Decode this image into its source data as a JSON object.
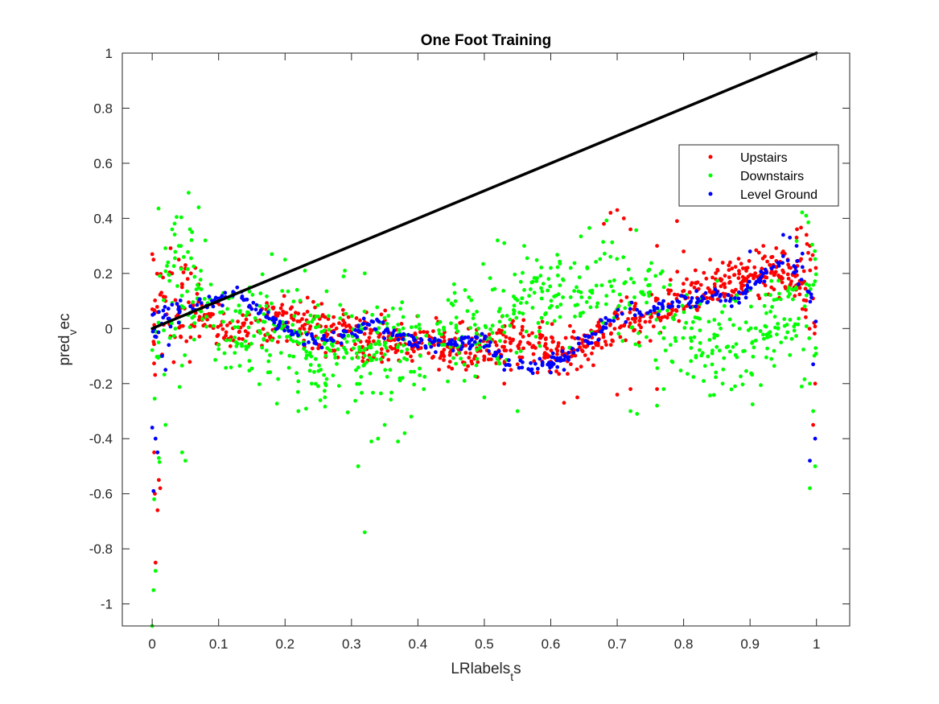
{
  "chart_data": {
    "type": "scatter",
    "title": "One Foot Training",
    "xlabel": {
      "base": "LRlabels",
      "sub": "t",
      "rest": "s"
    },
    "ylabel": {
      "base": "pred",
      "sub": "v",
      "rest": "ec"
    },
    "xlim": [
      -0.045,
      1.05
    ],
    "ylim": [
      -1.08,
      1.0
    ],
    "xticks": [
      0,
      0.1,
      0.2,
      0.3,
      0.4,
      0.5,
      0.6,
      0.7,
      0.8,
      0.9,
      1
    ],
    "xtick_labels": [
      "0",
      "0.1",
      "0.2",
      "0.3",
      "0.4",
      "0.5",
      "0.6",
      "0.7",
      "0.8",
      "0.9",
      "1"
    ],
    "yticks": [
      -1,
      -0.8,
      -0.6,
      -0.4,
      -0.2,
      0,
      0.2,
      0.4,
      0.6,
      0.8,
      1
    ],
    "ytick_labels": [
      "-1",
      "-0.8",
      "-0.6",
      "-0.4",
      "-0.2",
      "0",
      "0.2",
      "0.4",
      "0.6",
      "0.8",
      "1"
    ],
    "grid": false,
    "legend_position": "top-right",
    "reference_line": {
      "x": [
        0,
        1
      ],
      "y": [
        0,
        1
      ],
      "color": "#000000"
    },
    "series": [
      {
        "name": "Upstairs",
        "color": "#ff0000",
        "trend": [
          [
            0,
            0.02
          ],
          [
            0.05,
            0.1
          ],
          [
            0.1,
            0.0
          ],
          [
            0.15,
            -0.01
          ],
          [
            0.2,
            0.03
          ],
          [
            0.3,
            -0.03
          ],
          [
            0.4,
            -0.06
          ],
          [
            0.5,
            -0.08
          ],
          [
            0.55,
            -0.04
          ],
          [
            0.6,
            -0.07
          ],
          [
            0.65,
            -0.08
          ],
          [
            0.7,
            0.02
          ],
          [
            0.75,
            0.06
          ],
          [
            0.8,
            0.12
          ],
          [
            0.85,
            0.17
          ],
          [
            0.9,
            0.2
          ],
          [
            0.95,
            0.22
          ],
          [
            1.0,
            0.1
          ]
        ],
        "spread": 0.06,
        "points": [
          [
            0,
            0.27
          ],
          [
            0.002,
            0.25
          ],
          [
            0.003,
            -0.45
          ],
          [
            0.004,
            -0.6
          ],
          [
            0.005,
            -0.85
          ],
          [
            0.008,
            -0.66
          ],
          [
            0.01,
            -0.55
          ],
          [
            0.012,
            -0.58
          ],
          [
            0.02,
            0.1
          ],
          [
            0.03,
            0.2
          ],
          [
            0.04,
            0.25
          ],
          [
            0.045,
            0.15
          ],
          [
            0.065,
            0.22
          ],
          [
            0.07,
            0.16
          ],
          [
            0.69,
            0.42
          ],
          [
            0.7,
            0.43
          ],
          [
            0.71,
            0.4
          ],
          [
            0.72,
            0.36
          ],
          [
            0.68,
            0.38
          ],
          [
            0.79,
            0.39
          ],
          [
            0.76,
            0.3
          ],
          [
            0.8,
            0.28
          ],
          [
            0.84,
            0.25
          ],
          [
            0.87,
            0.24
          ],
          [
            0.92,
            0.3
          ],
          [
            0.95,
            0.28
          ],
          [
            0.97,
            0.33
          ],
          [
            0.985,
            0.34
          ],
          [
            0.99,
            0.3
          ],
          [
            0.995,
            -0.35
          ],
          [
            0.998,
            -0.2
          ],
          [
            0.999,
            0.22
          ],
          [
            0.62,
            -0.27
          ],
          [
            0.64,
            -0.25
          ],
          [
            0.7,
            -0.24
          ],
          [
            0.72,
            -0.22
          ],
          [
            0.76,
            -0.22
          ],
          [
            0.53,
            -0.2
          ],
          [
            0.54,
            -0.15
          ],
          [
            0.45,
            -0.08
          ],
          [
            0.55,
            -0.13
          ],
          [
            0.58,
            -0.16
          ],
          [
            0.6,
            -0.12
          ]
        ]
      },
      {
        "name": "Downstairs",
        "color": "#00ff00",
        "trend": [
          [
            0,
            -0.05
          ],
          [
            0.05,
            0.12
          ],
          [
            0.1,
            0.05
          ],
          [
            0.15,
            -0.03
          ],
          [
            0.2,
            -0.04
          ],
          [
            0.3,
            -0.08
          ],
          [
            0.4,
            -0.04
          ],
          [
            0.5,
            -0.02
          ],
          [
            0.55,
            0.1
          ],
          [
            0.6,
            0.12
          ],
          [
            0.65,
            0.15
          ],
          [
            0.7,
            0.13
          ],
          [
            0.75,
            0.09
          ],
          [
            0.8,
            -0.01
          ],
          [
            0.85,
            -0.05
          ],
          [
            0.9,
            -0.06
          ],
          [
            0.95,
            0.05
          ],
          [
            1.0,
            0.1
          ]
        ],
        "spread": 0.13,
        "points": [
          [
            0,
            -1.08
          ],
          [
            0.002,
            -0.95
          ],
          [
            0.005,
            -0.88
          ],
          [
            0.003,
            -0.62
          ],
          [
            0.01,
            -0.47
          ],
          [
            0.02,
            -0.35
          ],
          [
            0.03,
            0.36
          ],
          [
            0.04,
            0.3
          ],
          [
            0.06,
            0.35
          ],
          [
            0.07,
            0.44
          ],
          [
            0.08,
            0.32
          ],
          [
            0.05,
            -0.48
          ],
          [
            0.045,
            -0.45
          ],
          [
            0.18,
            0.27
          ],
          [
            0.2,
            0.25
          ],
          [
            0.23,
            0.21
          ],
          [
            0.29,
            0.21
          ],
          [
            0.32,
            0.2
          ],
          [
            0.31,
            -0.5
          ],
          [
            0.32,
            -0.74
          ],
          [
            0.33,
            -0.41
          ],
          [
            0.34,
            -0.4
          ],
          [
            0.37,
            -0.41
          ],
          [
            0.38,
            -0.38
          ],
          [
            0.39,
            -0.32
          ],
          [
            0.35,
            -0.35
          ],
          [
            0.52,
            0.32
          ],
          [
            0.53,
            0.31
          ],
          [
            0.56,
            0.3
          ],
          [
            0.6,
            0.22
          ],
          [
            0.63,
            0.22
          ],
          [
            0.72,
            -0.3
          ],
          [
            0.73,
            -0.31
          ],
          [
            0.76,
            -0.28
          ],
          [
            0.77,
            -0.22
          ],
          [
            0.99,
            -0.58
          ],
          [
            0.998,
            -0.5
          ],
          [
            0.995,
            -0.3
          ],
          [
            0.99,
            -0.2
          ],
          [
            0.985,
            0.12
          ],
          [
            0.9,
            0.14
          ],
          [
            0.88,
            0.12
          ],
          [
            0.5,
            -0.25
          ],
          [
            0.47,
            -0.19
          ],
          [
            0.22,
            -0.3
          ],
          [
            0.26,
            -0.25
          ],
          [
            0.24,
            -0.2
          ],
          [
            0.55,
            -0.3
          ]
        ]
      },
      {
        "name": "Level Ground",
        "color": "#0000ff",
        "trend": [
          [
            0,
            0.02
          ],
          [
            0.03,
            0.06
          ],
          [
            0.05,
            0.08
          ],
          [
            0.1,
            0.1
          ],
          [
            0.13,
            0.12
          ],
          [
            0.15,
            0.08
          ],
          [
            0.2,
            0.0
          ],
          [
            0.25,
            -0.05
          ],
          [
            0.3,
            -0.02
          ],
          [
            0.33,
            0.03
          ],
          [
            0.35,
            0.0
          ],
          [
            0.4,
            -0.05
          ],
          [
            0.45,
            -0.06
          ],
          [
            0.5,
            -0.05
          ],
          [
            0.53,
            -0.12
          ],
          [
            0.55,
            -0.14
          ],
          [
            0.6,
            -0.12
          ],
          [
            0.63,
            -0.1
          ],
          [
            0.65,
            -0.05
          ],
          [
            0.7,
            0.05
          ],
          [
            0.75,
            0.07
          ],
          [
            0.8,
            0.1
          ],
          [
            0.85,
            0.12
          ],
          [
            0.88,
            0.1
          ],
          [
            0.9,
            0.15
          ],
          [
            0.95,
            0.25
          ],
          [
            0.98,
            0.2
          ],
          [
            1.0,
            0.05
          ]
        ],
        "spread": 0.02,
        "points": [
          [
            0,
            -0.36
          ],
          [
            0.002,
            -0.59
          ],
          [
            0.005,
            -0.4
          ],
          [
            0.008,
            -0.45
          ],
          [
            0.01,
            0.06
          ],
          [
            0.015,
            -0.1
          ],
          [
            0.02,
            -0.15
          ],
          [
            0.025,
            -0.06
          ],
          [
            0.99,
            -0.48
          ],
          [
            0.998,
            -0.4
          ],
          [
            0.995,
            -0.13
          ],
          [
            0.95,
            0.34
          ],
          [
            0.96,
            0.33
          ],
          [
            0.97,
            0.3
          ],
          [
            0.9,
            0.28
          ],
          [
            0.53,
            -0.15
          ],
          [
            0.6,
            -0.16
          ],
          [
            0.61,
            -0.14
          ],
          [
            0.62,
            -0.15
          ]
        ]
      }
    ]
  }
}
